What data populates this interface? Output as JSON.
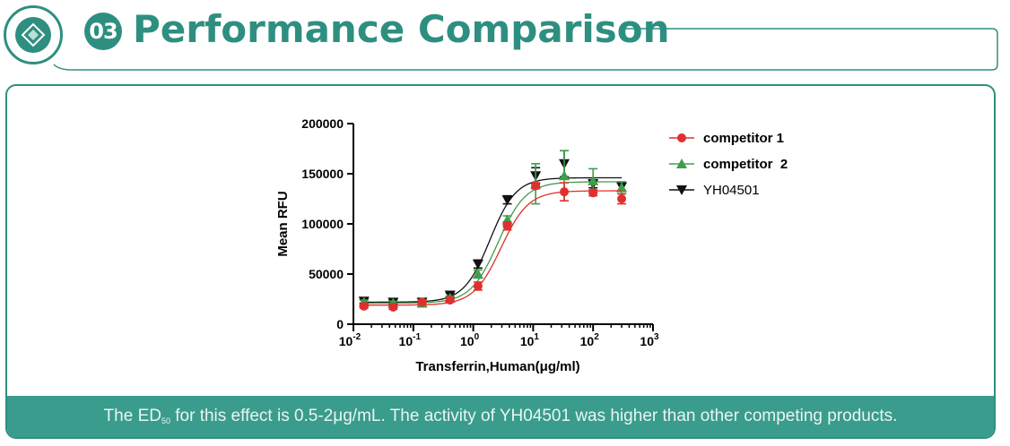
{
  "header": {
    "section_number": "03",
    "title": "Performance Comparison"
  },
  "caption": {
    "prefix": "The ED",
    "subscript": "50",
    "text": " for this effect is 0.5-2μg/mL. The activity of YH04501 was higher than other competing products."
  },
  "colors": {
    "accent": "#2e8f80",
    "caption_bar": "#3a9c8c",
    "competitor1": "#e0302e",
    "competitor2": "#3f9e4c",
    "yh04501": "#111111"
  },
  "chart_data": {
    "type": "scatter",
    "xlabel": "Transferrin,Human(μg/ml)",
    "ylabel": "Mean RFU",
    "x_scale": "log",
    "xlim": [
      0.01,
      1000
    ],
    "ylim": [
      0,
      200000
    ],
    "x_ticks": [
      {
        "base": "10",
        "exp": "-2"
      },
      {
        "base": "10",
        "exp": "-1"
      },
      {
        "base": "10",
        "exp": "0"
      },
      {
        "base": "10",
        "exp": "1"
      },
      {
        "base": "10",
        "exp": "2"
      },
      {
        "base": "10",
        "exp": "3"
      }
    ],
    "y_ticks": [
      "0",
      "50000",
      "100000",
      "150000",
      "200000"
    ],
    "legend_position": "right",
    "series": [
      {
        "name": "competitor 1",
        "marker": "circle",
        "x": [
          0.015,
          0.046,
          0.14,
          0.41,
          1.2,
          3.7,
          11,
          33,
          100,
          300
        ],
        "y": [
          18000,
          17000,
          22000,
          24000,
          38000,
          98000,
          138000,
          132000,
          131000,
          125000
        ],
        "err": [
          2000,
          2000,
          2000,
          2000,
          4000,
          4000,
          3000,
          9000,
          3000,
          5000
        ],
        "fit": {
          "bottom": 19000,
          "top": 133000,
          "ec50": 2.9,
          "hill": 1.9
        }
      },
      {
        "name": "competitor  2",
        "marker": "triangle-up",
        "x": [
          0.015,
          0.046,
          0.14,
          0.41,
          1.2,
          3.7,
          11,
          33,
          100,
          300
        ],
        "y": [
          22000,
          21000,
          21000,
          26000,
          50000,
          104000,
          140000,
          148000,
          143000,
          136000
        ],
        "err": [
          2000,
          2000,
          2000,
          2000,
          4000,
          4000,
          20000,
          25000,
          12000,
          6000
        ],
        "fit": {
          "bottom": 21000,
          "top": 142000,
          "ec50": 2.6,
          "hill": 1.9
        }
      },
      {
        "name": "YH04501",
        "marker": "triangle-down",
        "x": [
          0.015,
          0.046,
          0.14,
          0.41,
          1.2,
          3.7,
          11,
          33,
          100,
          300
        ],
        "y": [
          23000,
          22000,
          22000,
          29000,
          60000,
          124000,
          148000,
          160000,
          140000,
          137000
        ],
        "err": [
          2000,
          2000,
          2000,
          2000,
          4000,
          4000,
          8000,
          13000,
          4000,
          4000
        ],
        "fit": {
          "bottom": 22000,
          "top": 146000,
          "ec50": 1.9,
          "hill": 2.0
        }
      }
    ]
  }
}
